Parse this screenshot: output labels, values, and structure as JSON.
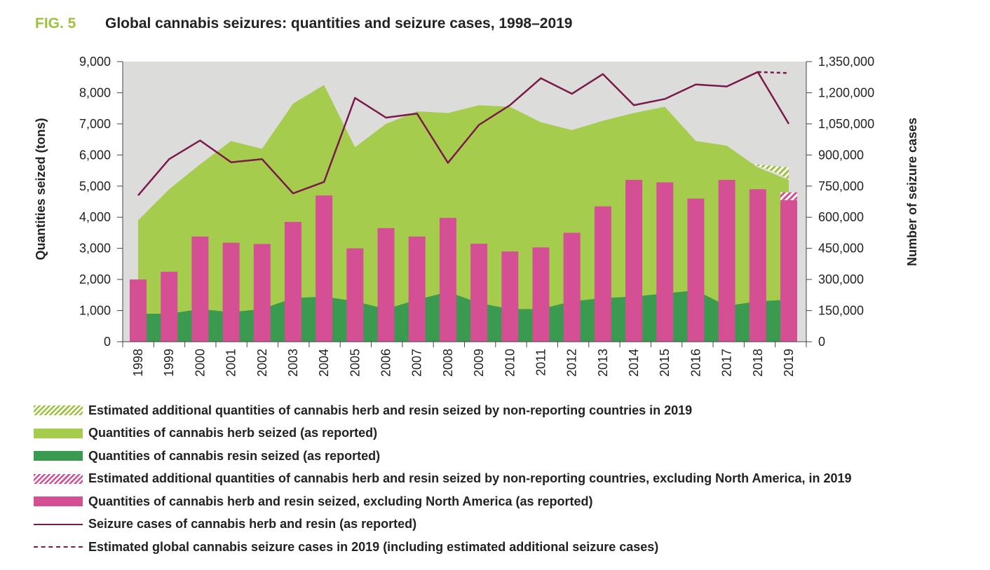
{
  "figure": {
    "label": "FIG. 5",
    "title": "Global cannabis seizures: quantities and seizure cases, 1998–2019"
  },
  "colors": {
    "herb": "#a6cc4e",
    "resin": "#3a9a4f",
    "bars": "#d44f94",
    "line": "#7a1a4a",
    "plot_background": "#dcdcda"
  },
  "chart_data": {
    "type": "bar",
    "categories": [
      "1998",
      "1999",
      "2000",
      "2001",
      "2002",
      "2003",
      "2004",
      "2005",
      "2006",
      "2007",
      "2008",
      "2009",
      "2010",
      "2011",
      "2012",
      "2013",
      "2014",
      "2015",
      "2016",
      "2017",
      "2018",
      "2019"
    ],
    "ylabel": "Quantities seized (tons)",
    "y2label": "Number of seizure cases",
    "ylim": [
      0,
      9000
    ],
    "y2lim": [
      0,
      1350000
    ],
    "yticks": [
      0,
      1000,
      2000,
      3000,
      4000,
      5000,
      6000,
      7000,
      8000,
      9000
    ],
    "y2ticks": [
      0,
      150000,
      300000,
      450000,
      600000,
      750000,
      900000,
      1050000,
      1200000,
      1350000
    ],
    "series": [
      {
        "name": "Quantities of cannabis herb seized (as reported)",
        "type": "area",
        "axis": "left",
        "values": [
          3900,
          4900,
          5700,
          6450,
          6200,
          7650,
          8250,
          6250,
          7000,
          7400,
          7350,
          7600,
          7550,
          7050,
          6800,
          7100,
          7350,
          7550,
          6450,
          6300,
          5600,
          5200
        ]
      },
      {
        "name": "Quantities of cannabis resin seized (as reported)",
        "type": "area",
        "axis": "left",
        "values": [
          900,
          900,
          1050,
          950,
          1050,
          1400,
          1450,
          1300,
          1050,
          1350,
          1600,
          1250,
          1050,
          1050,
          1300,
          1400,
          1450,
          1550,
          1650,
          1150,
          1300,
          1350
        ]
      },
      {
        "name": "Quantities of cannabis herb and resin seized, excluding North America (as reported)",
        "type": "bar",
        "axis": "left",
        "values": [
          2000,
          2250,
          3380,
          3180,
          3140,
          3850,
          4700,
          3000,
          3650,
          3380,
          3980,
          3150,
          2900,
          3030,
          3500,
          4350,
          5200,
          5120,
          4600,
          5200,
          4900,
          4550
        ]
      },
      {
        "name": "Seizure cases of cannabis herb and resin (as reported)",
        "type": "line",
        "axis": "right",
        "values": [
          705000,
          880000,
          970000,
          865000,
          880000,
          715000,
          770000,
          1175000,
          1080000,
          1100000,
          862000,
          1045000,
          1140000,
          1270000,
          1195000,
          1290000,
          1140000,
          1170000,
          1240000,
          1230000,
          1300000,
          1050000
        ]
      }
    ],
    "estimates_2019": {
      "herb_resin_non_reporting_top": 5600,
      "excl_north_america_non_reporting_top": 4800,
      "global_seizure_cases_2018": 1300000,
      "global_seizure_cases_2019": 1295000
    }
  },
  "legend": [
    {
      "key": "hatch-green",
      "label": "Estimated additional quantities of cannabis herb and resin seized by non-reporting countries in 2019"
    },
    {
      "key": "herb",
      "label": "Quantities of cannabis herb seized (as reported)"
    },
    {
      "key": "resin",
      "label": "Quantities of cannabis resin seized (as reported)"
    },
    {
      "key": "hatch-pink",
      "label": "Estimated additional quantities of cannabis herb and resin seized by non-reporting countries, excluding North America, in 2019"
    },
    {
      "key": "pink",
      "label": "Quantities of cannabis herb and resin seized, excluding North America (as reported)"
    },
    {
      "key": "line",
      "label": "Seizure cases of cannabis herb and resin (as reported)"
    },
    {
      "key": "dash",
      "label": "Estimated global cannabis seizure cases in 2019 (including estimated additional seizure cases)"
    }
  ]
}
